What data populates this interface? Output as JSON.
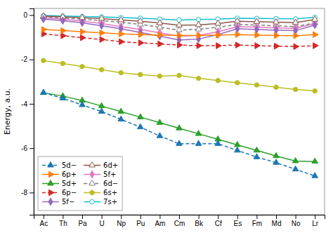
{
  "chart_data": {
    "type": "line",
    "categories": [
      "Ac",
      "Th",
      "Pa",
      "U",
      "Np",
      "Pu",
      "Am",
      "Cm",
      "Bk",
      "Cf",
      "Es",
      "Fm",
      "Md",
      "No",
      "Lr"
    ],
    "series": [
      {
        "name": "5d−",
        "marker": "triangle",
        "line_style": "dashed",
        "values": [
          -3.5,
          -3.75,
          -4.05,
          -4.35,
          -4.7,
          -5.05,
          -5.45,
          -5.8,
          -5.8,
          -5.8,
          -6.1,
          -6.4,
          -6.65,
          -6.95,
          -7.25
        ]
      },
      {
        "name": "6p+",
        "marker": "triangle-right",
        "line_style": "solid",
        "values": [
          -0.65,
          -0.7,
          -0.75,
          -0.8,
          -0.85,
          -0.88,
          -0.9,
          -0.92,
          -0.92,
          -0.9,
          -0.88,
          -0.9,
          -0.92,
          -0.93,
          -0.88
        ]
      },
      {
        "name": "5d+",
        "marker": "triangle",
        "line_style": "solid",
        "values": [
          -3.5,
          -3.65,
          -3.85,
          -4.1,
          -4.35,
          -4.6,
          -4.85,
          -5.1,
          -5.35,
          -5.6,
          -5.85,
          -6.1,
          -6.35,
          -6.58,
          -6.6
        ]
      },
      {
        "name": "6p−",
        "marker": "triangle-right",
        "line_style": "dashed",
        "values": [
          -0.85,
          -0.93,
          -1.02,
          -1.1,
          -1.2,
          -1.25,
          -1.3,
          -1.35,
          -1.38,
          -1.38,
          -1.35,
          -1.38,
          -1.4,
          -1.42,
          -1.38
        ]
      },
      {
        "name": "5f−",
        "marker": "diamond",
        "line_style": "solid",
        "values": [
          -0.18,
          -0.25,
          -0.35,
          -0.48,
          -0.62,
          -0.78,
          -0.95,
          -1.12,
          -1.08,
          -0.88,
          -0.62,
          -0.65,
          -0.68,
          -0.7,
          -0.45
        ]
      },
      {
        "name": "6d+",
        "marker": "triangle-open",
        "line_style": "solid",
        "values": [
          -0.05,
          -0.08,
          -0.12,
          -0.16,
          -0.22,
          -0.28,
          -0.36,
          -0.46,
          -0.44,
          -0.38,
          -0.28,
          -0.3,
          -0.32,
          -0.34,
          -0.2
        ]
      },
      {
        "name": "5f+",
        "marker": "diamond",
        "line_style": "solid",
        "values": [
          -0.12,
          -0.18,
          -0.27,
          -0.38,
          -0.52,
          -0.65,
          -0.8,
          -0.95,
          -0.92,
          -0.75,
          -0.52,
          -0.55,
          -0.58,
          -0.6,
          -0.38
        ]
      },
      {
        "name": "6d−",
        "marker": "triangle-open",
        "line_style": "dashed",
        "values": [
          -0.08,
          -0.13,
          -0.18,
          -0.25,
          -0.32,
          -0.42,
          -0.55,
          -0.68,
          -0.64,
          -0.55,
          -0.42,
          -0.45,
          -0.48,
          -0.52,
          -0.35
        ]
      },
      {
        "name": "6s+",
        "marker": "circle",
        "line_style": "solid",
        "values": [
          -2.05,
          -2.18,
          -2.32,
          -2.46,
          -2.6,
          -2.68,
          -2.75,
          -2.72,
          -2.85,
          -2.95,
          -3.05,
          -3.15,
          -3.25,
          -3.35,
          -3.42
        ]
      },
      {
        "name": "7s+",
        "marker": "circle-open",
        "line_style": "solid",
        "values": [
          -0.02,
          -0.04,
          -0.06,
          -0.08,
          -0.11,
          -0.14,
          -0.18,
          -0.22,
          -0.2,
          -0.18,
          -0.14,
          -0.15,
          -0.16,
          -0.17,
          -0.1
        ]
      }
    ],
    "ylabel": "Energy, a.u.",
    "ylim": [
      -9.0,
      0.3
    ],
    "yticks": [
      0,
      -2,
      -4,
      -6,
      -8
    ],
    "grid": false,
    "legend": "lower left"
  }
}
